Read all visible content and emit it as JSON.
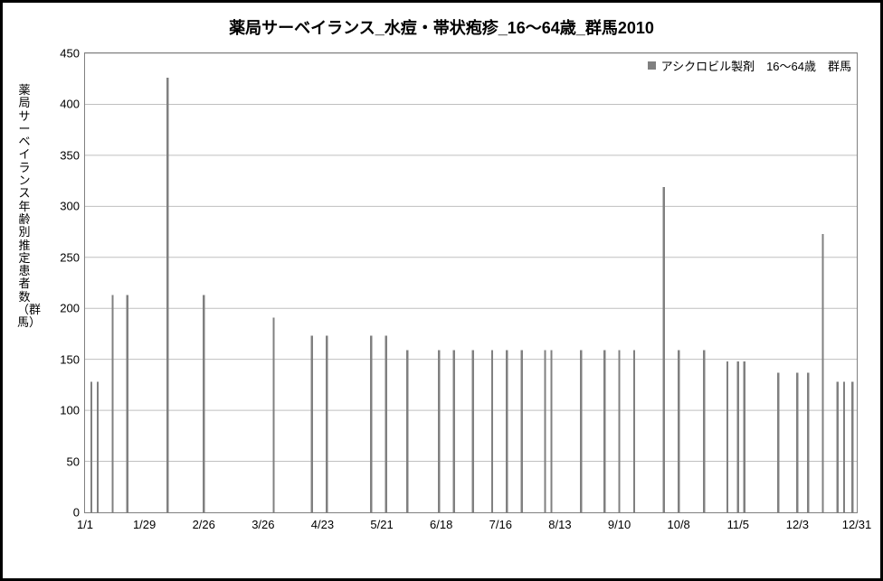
{
  "chart": {
    "type": "bar",
    "title": "薬局サーベイランス_水痘・帯状疱疹_16～64歳_群馬2010",
    "title_fontsize": 18,
    "ylabel": "薬局サーベイランス年齢別推定患者数（群馬）",
    "ylabel_fontsize": 13,
    "legend": {
      "label": "アシクロビル製剤　16～64歳　群馬",
      "color": "#808080",
      "fontsize": 13
    },
    "background_color": "#ffffff",
    "border_color": "#000000",
    "plot_border_color": "#808080",
    "grid_color": "#bfbfbf",
    "bar_color": "#808080",
    "bar_width_days": 1.0,
    "tick_fontsize": 13,
    "x": {
      "min_day": 1,
      "max_day": 365,
      "tick_days": [
        1,
        29,
        57,
        85,
        113,
        141,
        169,
        197,
        225,
        253,
        281,
        309,
        337,
        365
      ],
      "tick_labels": [
        "1/1",
        "1/29",
        "2/26",
        "3/26",
        "4/23",
        "5/21",
        "6/18",
        "7/16",
        "8/13",
        "9/10",
        "10/8",
        "11/5",
        "12/3",
        "12/31"
      ]
    },
    "y": {
      "min": 0,
      "max": 450,
      "tick_step": 50,
      "ticks": [
        0,
        50,
        100,
        150,
        200,
        250,
        300,
        350,
        400,
        450
      ]
    },
    "data": [
      {
        "day": 4,
        "value": 128
      },
      {
        "day": 7,
        "value": 128
      },
      {
        "day": 14,
        "value": 213
      },
      {
        "day": 21,
        "value": 213
      },
      {
        "day": 40,
        "value": 426
      },
      {
        "day": 57,
        "value": 213
      },
      {
        "day": 90,
        "value": 191
      },
      {
        "day": 108,
        "value": 173
      },
      {
        "day": 115,
        "value": 173
      },
      {
        "day": 136,
        "value": 173
      },
      {
        "day": 143,
        "value": 173
      },
      {
        "day": 153,
        "value": 159
      },
      {
        "day": 168,
        "value": 159
      },
      {
        "day": 175,
        "value": 159
      },
      {
        "day": 184,
        "value": 159
      },
      {
        "day": 193,
        "value": 159
      },
      {
        "day": 200,
        "value": 159
      },
      {
        "day": 207,
        "value": 159
      },
      {
        "day": 218,
        "value": 159
      },
      {
        "day": 221,
        "value": 159
      },
      {
        "day": 235,
        "value": 159
      },
      {
        "day": 246,
        "value": 159
      },
      {
        "day": 253,
        "value": 159
      },
      {
        "day": 260,
        "value": 159
      },
      {
        "day": 274,
        "value": 319
      },
      {
        "day": 281,
        "value": 159
      },
      {
        "day": 293,
        "value": 159
      },
      {
        "day": 304,
        "value": 148
      },
      {
        "day": 309,
        "value": 148
      },
      {
        "day": 312,
        "value": 148
      },
      {
        "day": 328,
        "value": 137
      },
      {
        "day": 337,
        "value": 137
      },
      {
        "day": 342,
        "value": 137
      },
      {
        "day": 349,
        "value": 273
      },
      {
        "day": 356,
        "value": 128
      },
      {
        "day": 359,
        "value": 128
      },
      {
        "day": 363,
        "value": 128
      }
    ]
  }
}
